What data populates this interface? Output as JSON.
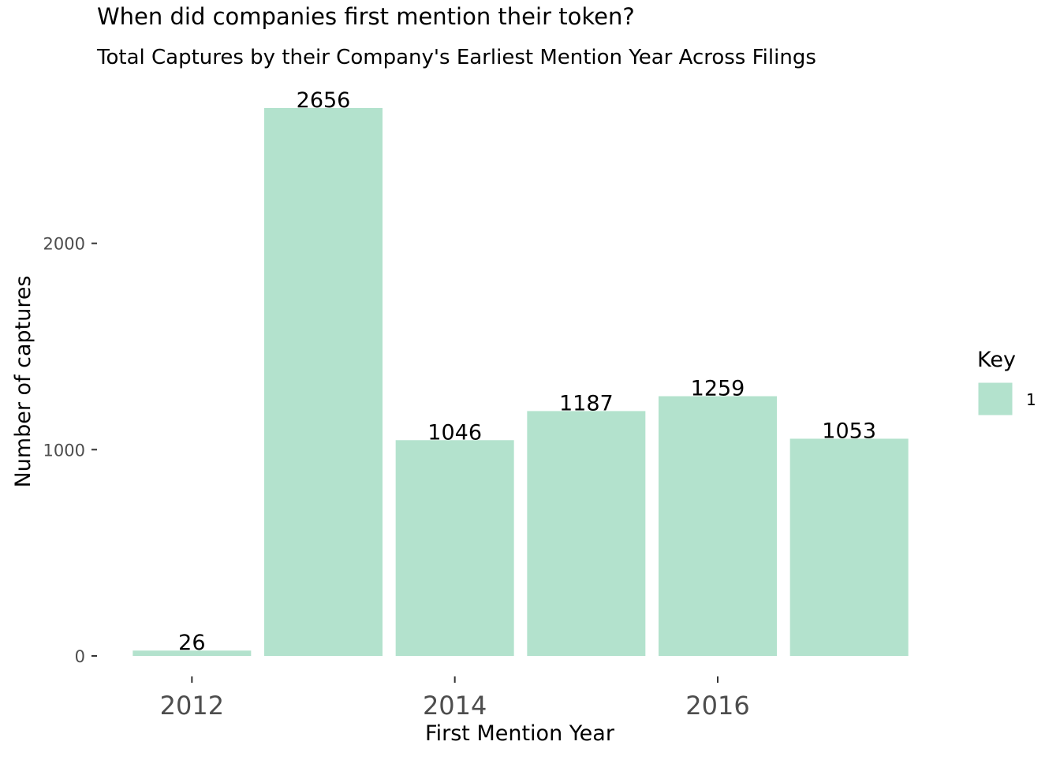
{
  "chart_data": {
    "type": "bar",
    "title": "When did companies first mention their token?",
    "subtitle": "Total Captures by their Company's Earliest Mention Year Across Filings",
    "xlabel": "First Mention Year",
    "ylabel": "Number of captures",
    "x": [
      2012,
      2013,
      2014,
      2015,
      2016,
      2017
    ],
    "values": [
      26,
      2656,
      1046,
      1187,
      1259,
      1053
    ],
    "data_labels": [
      "26",
      "2656",
      "1046",
      "1187",
      "1259",
      "1053"
    ],
    "x_ticks": [
      2012,
      2014,
      2016
    ],
    "x_tick_labels": [
      "2012",
      "2014",
      "2016"
    ],
    "y_ticks": [
      0,
      1000,
      2000
    ],
    "y_tick_labels": [
      "0",
      "1000",
      "2000"
    ],
    "xlim": [
      2011.5,
      2017.5
    ],
    "ylim": [
      0,
      2656
    ],
    "grid": false,
    "legend": {
      "title": "Key",
      "placement": "right",
      "entries": [
        {
          "label": "1",
          "color": "#b3e2cd"
        }
      ]
    },
    "colors": {
      "bar": "#b3e2cd"
    }
  }
}
